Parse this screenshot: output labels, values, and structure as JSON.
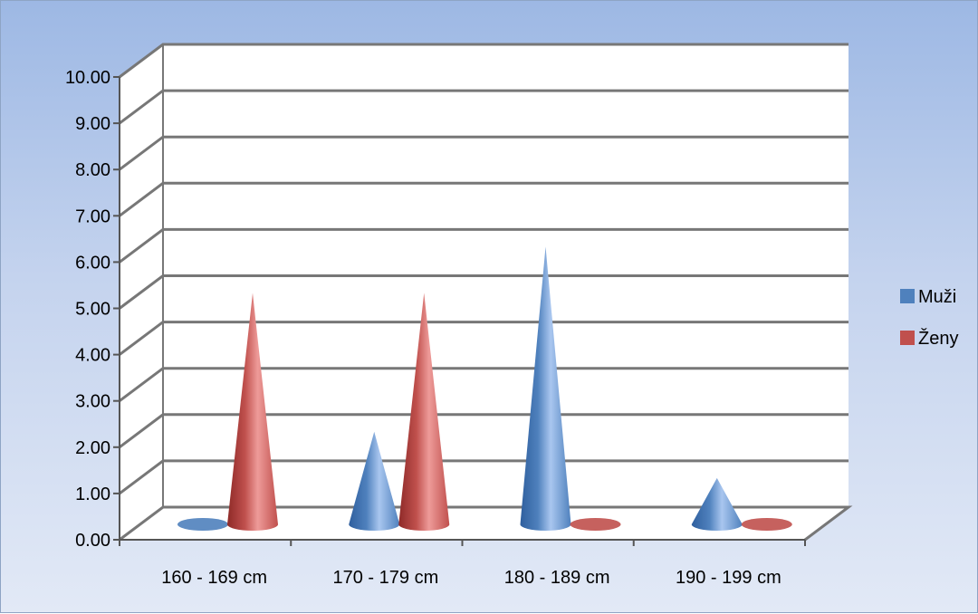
{
  "chart_data": {
    "type": "bar",
    "subtype": "3d-cone",
    "categories": [
      "160 - 169 cm",
      "170 - 179 cm",
      "180 - 189 cm",
      "190 - 199 cm"
    ],
    "series": [
      {
        "name": "Muži",
        "color": "#4f81bd",
        "values": [
          0,
          2,
          6,
          1
        ]
      },
      {
        "name": "Ženy",
        "color": "#c0504d",
        "values": [
          5,
          5,
          0,
          0
        ]
      }
    ],
    "title": "",
    "xlabel": "",
    "ylabel": "",
    "ylim": [
      0,
      10
    ],
    "yticks": [
      "0.00",
      "1.00",
      "2.00",
      "3.00",
      "4.00",
      "5.00",
      "6.00",
      "7.00",
      "8.00",
      "9.00",
      "10.00"
    ],
    "grid": true,
    "legend_position": "right"
  }
}
